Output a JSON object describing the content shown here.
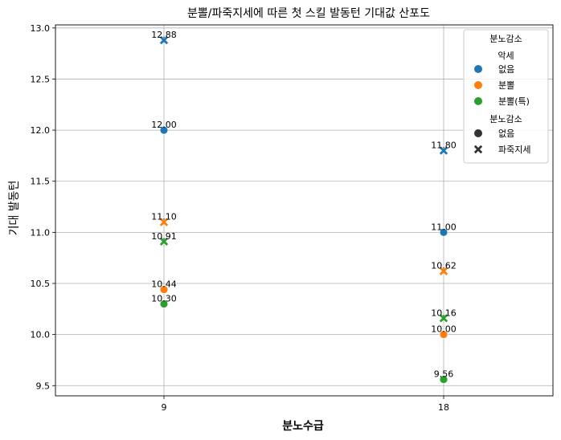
{
  "chart_data": {
    "type": "scatter",
    "title": "분뽈/파죽지세에 따른 첫 스킬 발동턴 기대값 산포도",
    "xlabel": "분노수급",
    "ylabel": "기대 발동턴",
    "x_categories": [
      "9",
      "18"
    ],
    "ylim": [
      9.4,
      13.03
    ],
    "yticks": [
      "9.5",
      "10.0",
      "10.5",
      "11.0",
      "11.5",
      "12.0",
      "12.5",
      "13.0"
    ],
    "ytick_values": [
      9.5,
      10.0,
      10.5,
      11.0,
      11.5,
      12.0,
      12.5,
      13.0
    ],
    "grid": true,
    "legend_placement": "top-right",
    "colors": {
      "blue": "#1f77b4",
      "orange": "#ff7f0e",
      "green": "#2ca02c"
    },
    "series": [
      {
        "name": "없음",
        "color": "#1f77b4",
        "marker": "circle",
        "x": [
          "9",
          "18"
        ],
        "y": [
          12.0,
          11.0
        ],
        "labels": [
          "12.00",
          "11.00"
        ]
      },
      {
        "name": "없음",
        "color": "#1f77b4",
        "marker": "x",
        "x": [
          "9",
          "18"
        ],
        "y": [
          12.88,
          11.8
        ],
        "labels": [
          "12.88",
          "11.80"
        ]
      },
      {
        "name": "분뽈",
        "color": "#ff7f0e",
        "marker": "circle",
        "x": [
          "9",
          "18"
        ],
        "y": [
          10.44,
          10.0
        ],
        "labels": [
          "10.44",
          "10.00"
        ]
      },
      {
        "name": "분뽈",
        "color": "#ff7f0e",
        "marker": "x",
        "x": [
          "9",
          "18"
        ],
        "y": [
          11.1,
          10.62
        ],
        "labels": [
          "11.10",
          "10.62"
        ]
      },
      {
        "name": "분뽈(특)",
        "color": "#2ca02c",
        "marker": "circle",
        "x": [
          "9",
          "18"
        ],
        "y": [
          10.3,
          9.56
        ],
        "labels": [
          "10.30",
          "9.56"
        ]
      },
      {
        "name": "분뽈(특)",
        "color": "#2ca02c",
        "marker": "x",
        "x": [
          "9",
          "18"
        ],
        "y": [
          10.91,
          10.16
        ],
        "labels": [
          "10.91",
          "10.16"
        ]
      }
    ],
    "legend": {
      "title": "분노감소",
      "hue_title": "악세",
      "hue_entries": [
        {
          "label": "없음",
          "color": "#1f77b4"
        },
        {
          "label": "분뽈",
          "color": "#ff7f0e"
        },
        {
          "label": "분뽈(특)",
          "color": "#2ca02c"
        }
      ],
      "style_title": "분노감소",
      "style_entries": [
        {
          "label": "없음",
          "marker": "circle"
        },
        {
          "label": "파죽지세",
          "marker": "x"
        }
      ]
    }
  }
}
